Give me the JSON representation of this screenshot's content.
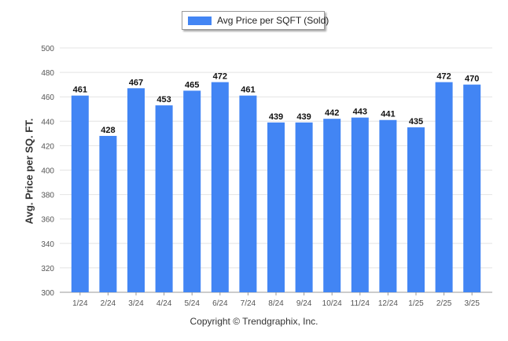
{
  "legend": {
    "label": "Avg Price per SQFT (Sold)"
  },
  "copyright": "Copyright © Trendgraphix, Inc.",
  "colors": {
    "bar": "#4285f4",
    "grid": "#e4e4e4",
    "axis": "#999999",
    "tick_text": "#555555",
    "data_label": "#111111"
  },
  "chart_data": {
    "type": "bar",
    "title": "",
    "xlabel": "",
    "ylabel": "Avg. Price per SQ. FT.",
    "ylim": [
      300,
      500
    ],
    "yticks": [
      300,
      320,
      340,
      360,
      380,
      400,
      420,
      440,
      460,
      480,
      500
    ],
    "grid": true,
    "legend_position": "top-center",
    "categories": [
      "1/24",
      "2/24",
      "3/24",
      "4/24",
      "5/24",
      "6/24",
      "7/24",
      "8/24",
      "9/24",
      "10/24",
      "11/24",
      "12/24",
      "1/25",
      "2/25",
      "3/25"
    ],
    "series": [
      {
        "name": "Avg Price per SQFT (Sold)",
        "values": [
          461,
          428,
          467,
          453,
          465,
          472,
          461,
          439,
          439,
          442,
          443,
          441,
          435,
          472,
          470
        ]
      }
    ]
  }
}
